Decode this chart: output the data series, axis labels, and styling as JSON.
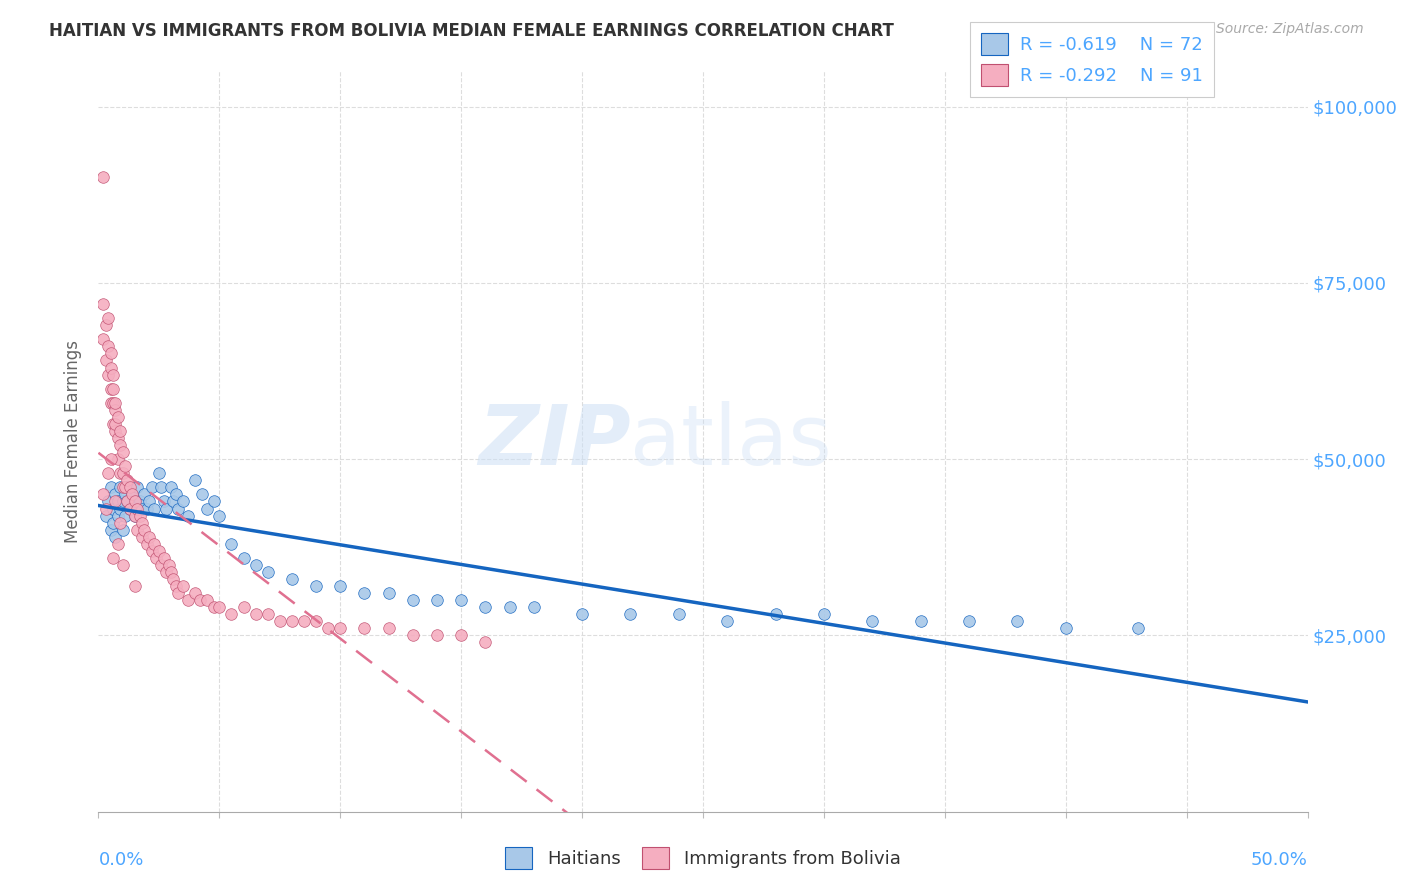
{
  "title": "HAITIAN VS IMMIGRANTS FROM BOLIVIA MEDIAN FEMALE EARNINGS CORRELATION CHART",
  "source": "Source: ZipAtlas.com",
  "ylabel": "Median Female Earnings",
  "xlim": [
    0.0,
    0.5
  ],
  "ylim": [
    0,
    105000
  ],
  "watermark_zip": "ZIP",
  "watermark_atlas": "atlas",
  "legend_r1": "-0.619",
  "legend_n1": "72",
  "legend_r2": "-0.292",
  "legend_n2": "91",
  "haitians_color": "#a8c8e8",
  "bolivia_color": "#f5aec0",
  "trendline_haiti_color": "#1565c0",
  "trendline_bolivia_color": "#e07090",
  "background_color": "#ffffff",
  "axis_color": "#4da6ff",
  "grid_color": "#dddddd",
  "haitians_x": [
    0.003,
    0.004,
    0.005,
    0.005,
    0.006,
    0.006,
    0.007,
    0.007,
    0.008,
    0.008,
    0.009,
    0.009,
    0.01,
    0.01,
    0.011,
    0.011,
    0.012,
    0.012,
    0.013,
    0.014,
    0.015,
    0.015,
    0.016,
    0.017,
    0.018,
    0.019,
    0.02,
    0.021,
    0.022,
    0.023,
    0.025,
    0.026,
    0.027,
    0.028,
    0.03,
    0.031,
    0.032,
    0.033,
    0.035,
    0.037,
    0.04,
    0.043,
    0.045,
    0.048,
    0.05,
    0.055,
    0.06,
    0.065,
    0.07,
    0.08,
    0.09,
    0.1,
    0.11,
    0.12,
    0.13,
    0.14,
    0.15,
    0.16,
    0.17,
    0.18,
    0.2,
    0.22,
    0.24,
    0.26,
    0.28,
    0.3,
    0.32,
    0.34,
    0.36,
    0.38,
    0.4,
    0.43
  ],
  "haitians_y": [
    42000,
    44000,
    40000,
    46000,
    43000,
    41000,
    45000,
    39000,
    44000,
    42000,
    46000,
    43000,
    44000,
    40000,
    45000,
    42000,
    44000,
    46000,
    43000,
    45000,
    44000,
    42000,
    46000,
    44000,
    43000,
    45000,
    43000,
    44000,
    46000,
    43000,
    48000,
    46000,
    44000,
    43000,
    46000,
    44000,
    45000,
    43000,
    44000,
    42000,
    47000,
    45000,
    43000,
    44000,
    42000,
    38000,
    36000,
    35000,
    34000,
    33000,
    32000,
    32000,
    31000,
    31000,
    30000,
    30000,
    30000,
    29000,
    29000,
    29000,
    28000,
    28000,
    28000,
    27000,
    28000,
    28000,
    27000,
    27000,
    27000,
    27000,
    26000,
    26000
  ],
  "bolivia_x": [
    0.002,
    0.002,
    0.003,
    0.003,
    0.004,
    0.004,
    0.004,
    0.005,
    0.005,
    0.005,
    0.005,
    0.006,
    0.006,
    0.006,
    0.006,
    0.007,
    0.007,
    0.007,
    0.007,
    0.008,
    0.008,
    0.008,
    0.009,
    0.009,
    0.009,
    0.01,
    0.01,
    0.01,
    0.011,
    0.011,
    0.012,
    0.012,
    0.013,
    0.013,
    0.014,
    0.015,
    0.015,
    0.016,
    0.016,
    0.017,
    0.018,
    0.018,
    0.019,
    0.02,
    0.021,
    0.022,
    0.023,
    0.024,
    0.025,
    0.026,
    0.027,
    0.028,
    0.029,
    0.03,
    0.031,
    0.032,
    0.033,
    0.035,
    0.037,
    0.04,
    0.042,
    0.045,
    0.048,
    0.05,
    0.055,
    0.06,
    0.065,
    0.07,
    0.075,
    0.08,
    0.085,
    0.09,
    0.095,
    0.1,
    0.11,
    0.12,
    0.13,
    0.14,
    0.15,
    0.16,
    0.002,
    0.003,
    0.004,
    0.005,
    0.006,
    0.007,
    0.008,
    0.009,
    0.01,
    0.015,
    0.002
  ],
  "bolivia_y": [
    67000,
    72000,
    64000,
    69000,
    62000,
    66000,
    70000,
    60000,
    63000,
    58000,
    65000,
    58000,
    62000,
    55000,
    60000,
    57000,
    54000,
    58000,
    55000,
    56000,
    53000,
    50000,
    54000,
    52000,
    48000,
    51000,
    48000,
    46000,
    49000,
    46000,
    47000,
    44000,
    46000,
    43000,
    45000,
    44000,
    42000,
    43000,
    40000,
    42000,
    41000,
    39000,
    40000,
    38000,
    39000,
    37000,
    38000,
    36000,
    37000,
    35000,
    36000,
    34000,
    35000,
    34000,
    33000,
    32000,
    31000,
    32000,
    30000,
    31000,
    30000,
    30000,
    29000,
    29000,
    28000,
    29000,
    28000,
    28000,
    27000,
    27000,
    27000,
    27000,
    26000,
    26000,
    26000,
    26000,
    25000,
    25000,
    25000,
    24000,
    45000,
    43000,
    48000,
    50000,
    36000,
    44000,
    38000,
    41000,
    35000,
    32000,
    90000
  ]
}
